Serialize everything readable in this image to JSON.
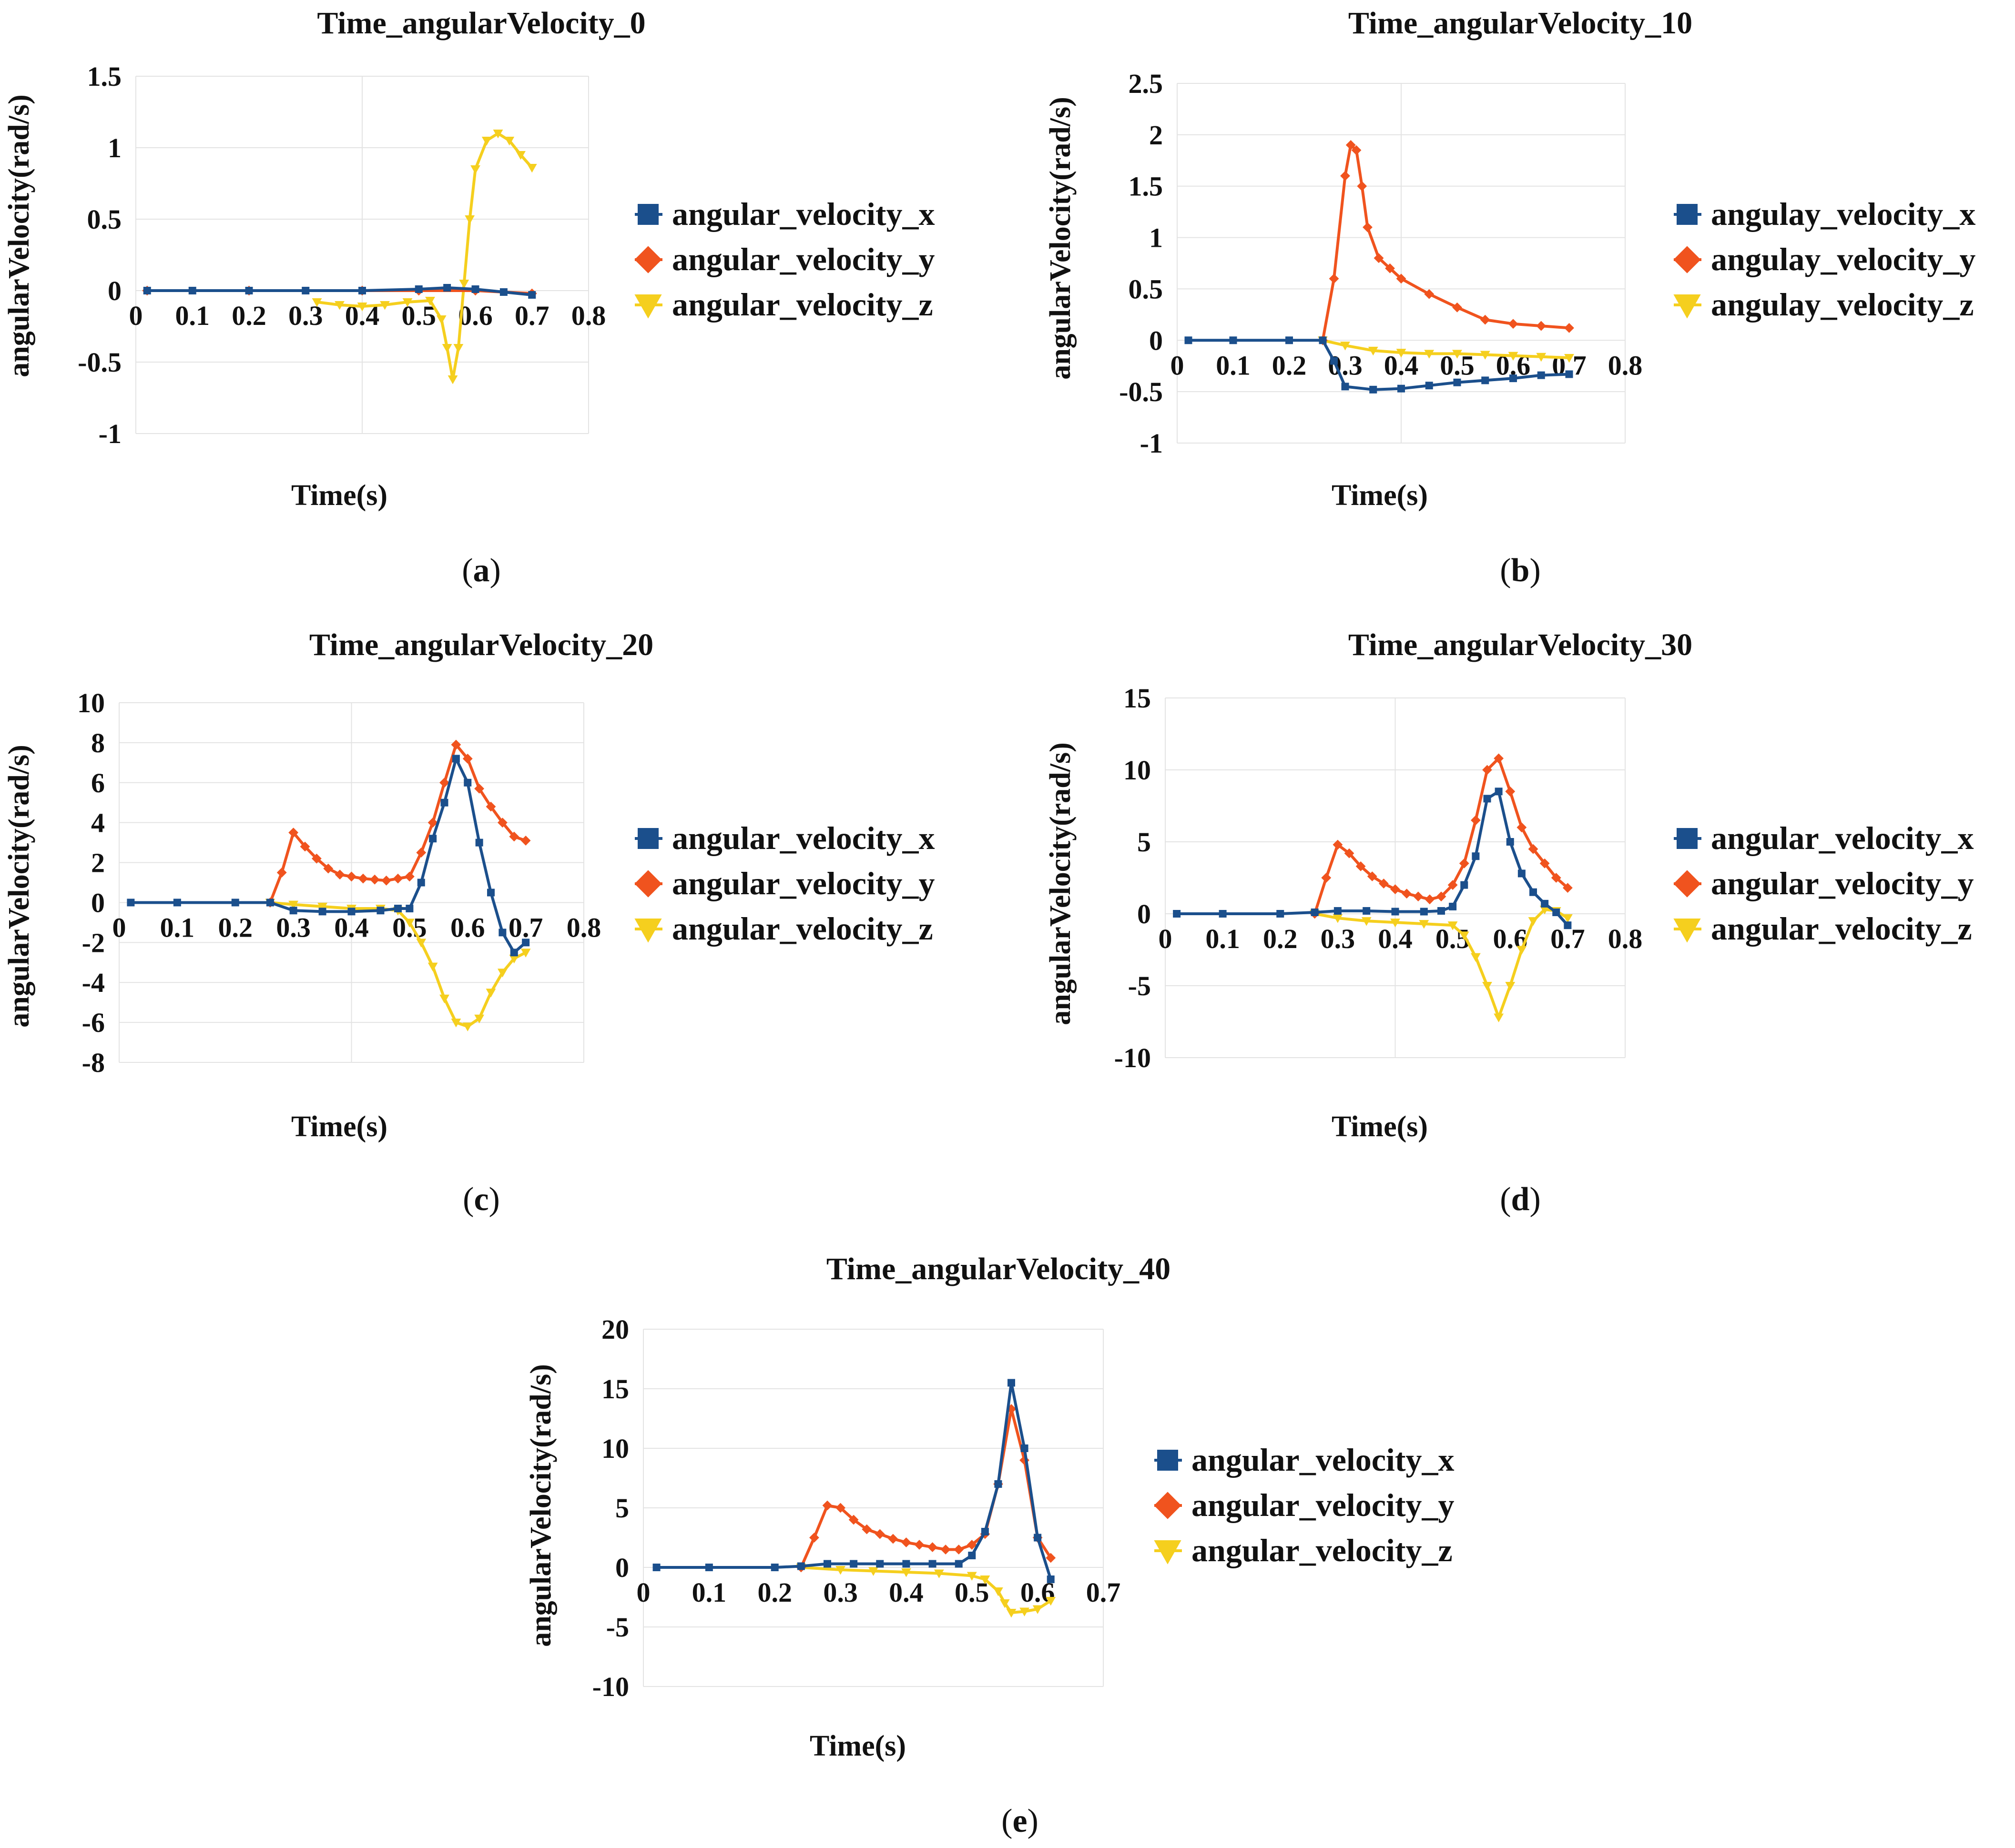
{
  "colors": {
    "x": "#1b4f8c",
    "y": "#f0531e",
    "z": "#f5cf1e",
    "grid": "#e3e3e3"
  },
  "chart_data": [
    {
      "type": "line",
      "title": "Time_angularVelocity_0",
      "xlabel": "Time(s)",
      "ylabel": "angularVelocity(rad/s)",
      "caption": "a",
      "xlim": [
        0,
        0.8
      ],
      "ylim": [
        -1,
        1.5
      ],
      "xticks": [
        "0",
        "0.1",
        "0.2",
        "0.3",
        "0.4",
        "0.5",
        "0.6",
        "0.7",
        "0.8"
      ],
      "yticks": [
        "-1",
        "-0.5",
        "0",
        "0.5",
        "1",
        "1.5"
      ],
      "series": [
        {
          "name": "angular_velocity_x",
          "marker": "square",
          "x": [
            0.02,
            0.1,
            0.2,
            0.3,
            0.4,
            0.5,
            0.55,
            0.6,
            0.65,
            0.7
          ],
          "y": [
            0,
            0,
            0,
            0,
            0,
            0.01,
            0.02,
            0.01,
            -0.01,
            -0.03
          ]
        },
        {
          "name": "angular_velocity_y",
          "marker": "diamond",
          "x": [
            0.02,
            0.2,
            0.4,
            0.5,
            0.6,
            0.7
          ],
          "y": [
            0,
            0,
            0,
            0,
            0,
            -0.02
          ]
        },
        {
          "name": "angular_velocity_z",
          "marker": "triangle",
          "x": [
            0.32,
            0.36,
            0.4,
            0.44,
            0.48,
            0.52,
            0.54,
            0.55,
            0.56,
            0.57,
            0.58,
            0.59,
            0.6,
            0.62,
            0.64,
            0.66,
            0.68,
            0.7
          ],
          "y": [
            -0.08,
            -0.1,
            -0.11,
            -0.1,
            -0.08,
            -0.07,
            -0.2,
            -0.4,
            -0.62,
            -0.4,
            0.05,
            0.5,
            0.85,
            1.05,
            1.1,
            1.05,
            0.95,
            0.86
          ]
        }
      ]
    },
    {
      "type": "line",
      "title": "Time_angularVelocity_10",
      "xlabel": "Time(s)",
      "ylabel": "angularVelocity(rad/s)",
      "caption": "b",
      "xlim": [
        0,
        0.8
      ],
      "ylim": [
        -1,
        2.5
      ],
      "xticks": [
        "0",
        "0.1",
        "0.2",
        "0.3",
        "0.4",
        "0.5",
        "0.6",
        "0.7",
        "0.8"
      ],
      "yticks": [
        "-1",
        "-0.5",
        "0",
        "0.5",
        "1",
        "1.5",
        "2",
        "2.5"
      ],
      "series": [
        {
          "name": "angulay_velocity_x",
          "marker": "square",
          "x": [
            0.02,
            0.1,
            0.2,
            0.26,
            0.28,
            0.3,
            0.35,
            0.4,
            0.45,
            0.5,
            0.55,
            0.6,
            0.65,
            0.7
          ],
          "y": [
            0,
            0,
            0,
            0,
            -0.2,
            -0.45,
            -0.48,
            -0.47,
            -0.44,
            -0.41,
            -0.39,
            -0.37,
            -0.34,
            -0.33
          ]
        },
        {
          "name": "angulay_velocity_y",
          "marker": "diamond",
          "x": [
            0.26,
            0.28,
            0.3,
            0.31,
            0.32,
            0.33,
            0.34,
            0.36,
            0.38,
            0.4,
            0.45,
            0.5,
            0.55,
            0.6,
            0.65,
            0.7
          ],
          "y": [
            0,
            0.6,
            1.6,
            1.9,
            1.85,
            1.5,
            1.1,
            0.8,
            0.7,
            0.6,
            0.45,
            0.32,
            0.2,
            0.16,
            0.14,
            0.12
          ]
        },
        {
          "name": "angulay_velocity_z",
          "marker": "triangle",
          "x": [
            0.26,
            0.3,
            0.35,
            0.4,
            0.45,
            0.5,
            0.55,
            0.6,
            0.65,
            0.7
          ],
          "y": [
            0,
            -0.05,
            -0.1,
            -0.12,
            -0.13,
            -0.13,
            -0.14,
            -0.15,
            -0.16,
            -0.17
          ]
        }
      ]
    },
    {
      "type": "line",
      "title": "Time_angularVelocity_20",
      "xlabel": "Time(s)",
      "ylabel": "angularVelocity(rad/s)",
      "caption": "c",
      "xlim": [
        0,
        0.8
      ],
      "ylim": [
        -8,
        10
      ],
      "xticks": [
        "0",
        "0.1",
        "0.2",
        "0.3",
        "0.4",
        "0.5",
        "0.6",
        "0.7",
        "0.8"
      ],
      "yticks": [
        "-8",
        "-6",
        "-4",
        "-2",
        "0",
        "2",
        "4",
        "6",
        "8",
        "10"
      ],
      "series": [
        {
          "name": "angular_velocity_x",
          "marker": "square",
          "x": [
            0.02,
            0.1,
            0.2,
            0.26,
            0.3,
            0.35,
            0.4,
            0.45,
            0.48,
            0.5,
            0.52,
            0.54,
            0.56,
            0.58,
            0.6,
            0.62,
            0.64,
            0.66,
            0.68,
            0.7
          ],
          "y": [
            0,
            0,
            0,
            0,
            -0.4,
            -0.45,
            -0.45,
            -0.4,
            -0.3,
            -0.3,
            1,
            3.2,
            5,
            7.2,
            6,
            3,
            0.5,
            -1.5,
            -2.5,
            -2
          ]
        },
        {
          "name": "angular_velocity_y",
          "marker": "diamond",
          "x": [
            0.26,
            0.28,
            0.3,
            0.32,
            0.34,
            0.36,
            0.38,
            0.4,
            0.42,
            0.44,
            0.46,
            0.48,
            0.5,
            0.52,
            0.54,
            0.56,
            0.58,
            0.6,
            0.62,
            0.64,
            0.66,
            0.68,
            0.7
          ],
          "y": [
            0,
            1.5,
            3.5,
            2.8,
            2.2,
            1.7,
            1.4,
            1.3,
            1.2,
            1.15,
            1.1,
            1.2,
            1.3,
            2.5,
            4,
            6,
            7.9,
            7.2,
            5.7,
            4.8,
            4,
            3.3,
            3.1
          ]
        },
        {
          "name": "angular_velocity_z",
          "marker": "triangle",
          "x": [
            0.26,
            0.3,
            0.35,
            0.4,
            0.45,
            0.48,
            0.5,
            0.52,
            0.54,
            0.56,
            0.58,
            0.6,
            0.62,
            0.64,
            0.66,
            0.68,
            0.7
          ],
          "y": [
            0,
            -0.1,
            -0.2,
            -0.3,
            -0.3,
            -0.4,
            -1,
            -2,
            -3.2,
            -4.8,
            -6,
            -6.2,
            -5.8,
            -4.5,
            -3.5,
            -2.8,
            -2.5
          ]
        }
      ]
    },
    {
      "type": "line",
      "title": "Time_angularVelocity_30",
      "xlabel": "Time(s)",
      "ylabel": "angularVelocity(rad/s)",
      "caption": "d",
      "xlim": [
        0,
        0.8
      ],
      "ylim": [
        -10,
        15
      ],
      "xticks": [
        "0",
        "0.1",
        "0.2",
        "0.3",
        "0.4",
        "0.5",
        "0.6",
        "0.7",
        "0.8"
      ],
      "yticks": [
        "-10",
        "-5",
        "0",
        "5",
        "10",
        "15"
      ],
      "series": [
        {
          "name": "angular_velocity_x",
          "marker": "square",
          "x": [
            0.02,
            0.1,
            0.2,
            0.26,
            0.3,
            0.35,
            0.4,
            0.45,
            0.48,
            0.5,
            0.52,
            0.54,
            0.56,
            0.58,
            0.6,
            0.62,
            0.64,
            0.66,
            0.68,
            0.7
          ],
          "y": [
            0,
            0,
            0,
            0.1,
            0.2,
            0.2,
            0.15,
            0.15,
            0.2,
            0.5,
            2,
            4,
            8,
            8.5,
            5,
            2.8,
            1.5,
            0.7,
            0.1,
            -0.8
          ]
        },
        {
          "name": "angular_velocity_y",
          "marker": "diamond",
          "x": [
            0.26,
            0.28,
            0.3,
            0.32,
            0.34,
            0.36,
            0.38,
            0.4,
            0.42,
            0.44,
            0.46,
            0.48,
            0.5,
            0.52,
            0.54,
            0.56,
            0.58,
            0.6,
            0.62,
            0.64,
            0.66,
            0.68,
            0.7
          ],
          "y": [
            0,
            2.5,
            4.8,
            4.2,
            3.3,
            2.6,
            2.1,
            1.7,
            1.4,
            1.2,
            1,
            1.2,
            2,
            3.5,
            6.5,
            10,
            10.8,
            8.5,
            6,
            4.5,
            3.5,
            2.5,
            1.8
          ]
        },
        {
          "name": "angular_velocity_z",
          "marker": "triangle",
          "x": [
            0.26,
            0.3,
            0.35,
            0.4,
            0.45,
            0.5,
            0.52,
            0.54,
            0.56,
            0.58,
            0.6,
            0.62,
            0.64,
            0.66,
            0.68,
            0.7
          ],
          "y": [
            0,
            -0.3,
            -0.5,
            -0.6,
            -0.7,
            -0.8,
            -1.5,
            -3,
            -5,
            -7.2,
            -5,
            -2.5,
            -0.5,
            0.3,
            0.2,
            -0.3
          ]
        }
      ]
    },
    {
      "type": "line",
      "title": "Time_angularVelocity_40",
      "xlabel": "Time(s)",
      "ylabel": "angularVelocity(rad/s)",
      "caption": "e",
      "xlim": [
        0,
        0.7
      ],
      "ylim": [
        -10,
        20
      ],
      "xticks": [
        "0",
        "0.1",
        "0.2",
        "0.3",
        "0.4",
        "0.5",
        "0.6",
        "0.7"
      ],
      "yticks": [
        "-10",
        "-5",
        "0",
        "5",
        "10",
        "15",
        "20"
      ],
      "series": [
        {
          "name": "angular_velocity_x",
          "marker": "square",
          "x": [
            0.02,
            0.1,
            0.2,
            0.24,
            0.28,
            0.32,
            0.36,
            0.4,
            0.44,
            0.48,
            0.5,
            0.52,
            0.54,
            0.56,
            0.58,
            0.6,
            0.62
          ],
          "y": [
            0,
            0,
            0,
            0.1,
            0.3,
            0.3,
            0.3,
            0.3,
            0.3,
            0.3,
            1,
            3,
            7,
            15.5,
            10,
            2.5,
            -1
          ]
        },
        {
          "name": "angular_velocity_y",
          "marker": "diamond",
          "x": [
            0.24,
            0.26,
            0.28,
            0.3,
            0.32,
            0.34,
            0.36,
            0.38,
            0.4,
            0.42,
            0.44,
            0.46,
            0.48,
            0.5,
            0.52,
            0.54,
            0.56,
            0.58,
            0.6,
            0.62
          ],
          "y": [
            0,
            2.5,
            5.2,
            5,
            4,
            3.2,
            2.8,
            2.4,
            2.1,
            1.9,
            1.7,
            1.5,
            1.5,
            1.9,
            2.8,
            7,
            13.3,
            9,
            2.5,
            0.8
          ]
        },
        {
          "name": "angular_velocity_z",
          "marker": "triangle",
          "x": [
            0.24,
            0.3,
            0.35,
            0.4,
            0.45,
            0.5,
            0.52,
            0.54,
            0.55,
            0.56,
            0.58,
            0.6,
            0.62
          ],
          "y": [
            0,
            -0.2,
            -0.3,
            -0.4,
            -0.5,
            -0.7,
            -1,
            -2,
            -3,
            -3.8,
            -3.7,
            -3.5,
            -2.8
          ]
        }
      ]
    }
  ]
}
